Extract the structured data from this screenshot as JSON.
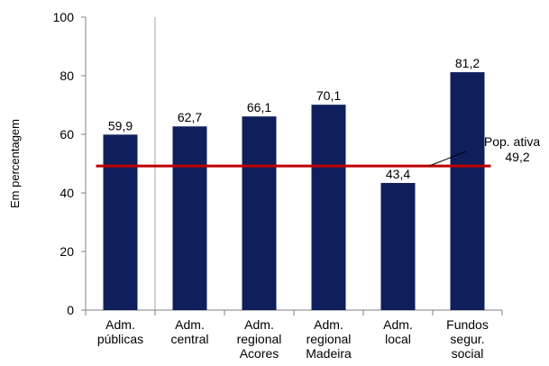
{
  "chart_data": {
    "type": "bar",
    "ylabel": "Em percentagem",
    "ylim": [
      0,
      100
    ],
    "yticks": [
      0,
      20,
      40,
      60,
      80,
      100
    ],
    "grid": false,
    "categories": [
      [
        "Adm.",
        "públicas"
      ],
      [
        "Adm.",
        "central"
      ],
      [
        "Adm.",
        "regional",
        "Acores"
      ],
      [
        "Adm.",
        "regional",
        "Madeira"
      ],
      [
        "Adm.",
        "local"
      ],
      [
        "Fundos",
        "segur.",
        "social"
      ]
    ],
    "values": [
      59.9,
      62.7,
      66.1,
      70.1,
      43.4,
      81.2
    ],
    "value_labels": [
      "59,9",
      "62,7",
      "66,1",
      "70,1",
      "43,4",
      "81,2"
    ],
    "reference_line": {
      "label": [
        "Pop. ativa",
        "49,2"
      ],
      "value": 49.2
    },
    "colors": {
      "bar": "#0f1f5c",
      "reference_line": "#c00000",
      "axis": "#808080"
    }
  }
}
